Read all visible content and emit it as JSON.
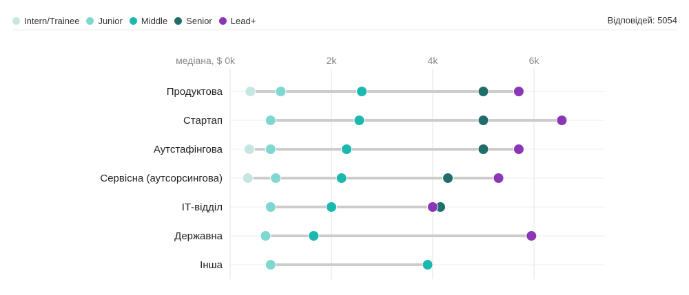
{
  "legend": {
    "items": [
      {
        "label": "Intern/Trainee",
        "color": "#c5e6e2"
      },
      {
        "label": "Junior",
        "color": "#7fd8d0"
      },
      {
        "label": "Middle",
        "color": "#1ab8ad"
      },
      {
        "label": "Senior",
        "color": "#1f6e6b"
      },
      {
        "label": "Lead+",
        "color": "#8a36b5"
      }
    ]
  },
  "responses_text": "Відповідей: 5054",
  "chart_data": {
    "type": "dot-range",
    "xlabel": "медіана, $",
    "x_ticks": [
      {
        "value": 0,
        "label": "0k"
      },
      {
        "value": 2000,
        "label": "2k"
      },
      {
        "value": 4000,
        "label": "4k"
      },
      {
        "value": 6000,
        "label": "6k"
      }
    ],
    "xlim": [
      0,
      7400
    ],
    "connector_color": "#cccccc",
    "grid": true,
    "series_names": [
      "Intern/Trainee",
      "Junior",
      "Middle",
      "Senior",
      "Lead+"
    ],
    "categories": [
      {
        "label": "Продуктова",
        "values": [
          400,
          1000,
          2600,
          5000,
          5700
        ]
      },
      {
        "label": "Стартап",
        "values": [
          null,
          800,
          2550,
          5000,
          6550
        ]
      },
      {
        "label": "Аутстафінгова",
        "values": [
          380,
          800,
          2300,
          5000,
          5700
        ]
      },
      {
        "label": "Сервісна (аутсорсингова)",
        "values": [
          350,
          900,
          2200,
          4300,
          5300
        ]
      },
      {
        "label": "ІТ-відділ",
        "values": [
          null,
          800,
          2000,
          4150,
          4000
        ]
      },
      {
        "label": "Державна",
        "values": [
          null,
          700,
          1650,
          null,
          5950
        ]
      },
      {
        "label": "Інша",
        "values": [
          null,
          800,
          3900,
          null,
          null
        ]
      }
    ]
  }
}
